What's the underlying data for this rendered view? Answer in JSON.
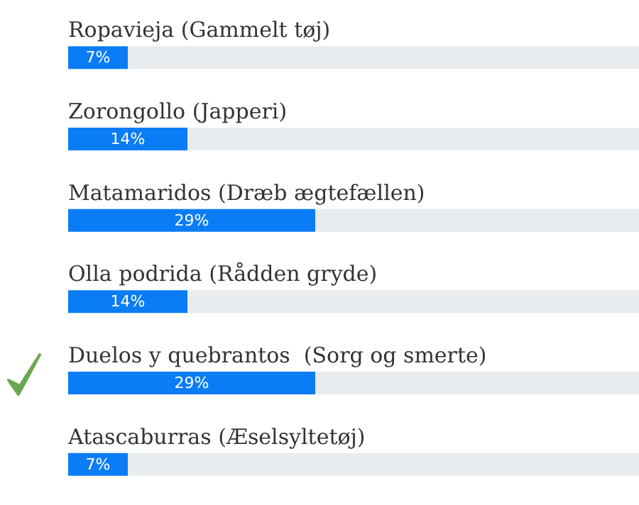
{
  "chart_data": {
    "type": "bar",
    "orientation": "horizontal",
    "categories": [
      "Ropavieja (Gammelt tøj)",
      "Zorongollo (Japperi)",
      "Matamaridos (Dræb ægtefællen)",
      "Olla podrida (Rådden gryde)",
      "Duelos y quebrantos  (Sorg og smerte)",
      "Atascaburras (Æselsyltetøj)"
    ],
    "values": [
      7,
      14,
      29,
      14,
      29,
      7
    ],
    "value_labels": [
      "7%",
      "14%",
      "29%",
      "14%",
      "29%",
      "7%"
    ],
    "color": "#0a7cf5",
    "xlim": [
      0,
      67
    ],
    "tick_labels": false
  }
}
